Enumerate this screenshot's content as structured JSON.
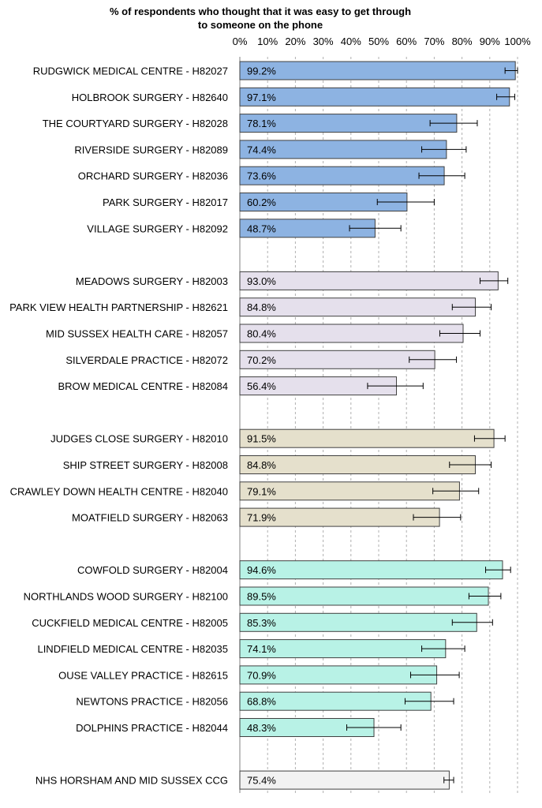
{
  "chart_data": {
    "type": "bar",
    "orientation": "horizontal",
    "title_lines": [
      "% of respondents who thought that it was easy to get through",
      "to someone on the phone"
    ],
    "xlim": [
      0,
      100
    ],
    "xticks": [
      "0%",
      "10%",
      "20%",
      "30%",
      "40%",
      "50%",
      "60%",
      "70%",
      "80%",
      "90%",
      "100%"
    ],
    "grid": "vertical dashed",
    "groups": [
      {
        "color": "#8db3e2",
        "bars": [
          {
            "label": "RUDGWICK MEDICAL CENTRE - H82027",
            "value": 99.2,
            "value_label": "99.2%",
            "ci": [
              95.5,
              100
            ]
          },
          {
            "label": "HOLBROOK SURGERY - H82640",
            "value": 97.1,
            "value_label": "97.1%",
            "ci": [
              92.5,
              99
            ]
          },
          {
            "label": "THE COURTYARD SURGERY - H82028",
            "value": 78.1,
            "value_label": "78.1%",
            "ci": [
              68.5,
              85.5
            ]
          },
          {
            "label": "RIVERSIDE SURGERY - H82089",
            "value": 74.4,
            "value_label": "74.4%",
            "ci": [
              65.5,
              81.5
            ]
          },
          {
            "label": "ORCHARD SURGERY - H82036",
            "value": 73.6,
            "value_label": "73.6%",
            "ci": [
              64.5,
              81
            ]
          },
          {
            "label": "PARK SURGERY - H82017",
            "value": 60.2,
            "value_label": "60.2%",
            "ci": [
              49.5,
              70
            ]
          },
          {
            "label": "VILLAGE SURGERY - H82092",
            "value": 48.7,
            "value_label": "48.7%",
            "ci": [
              39.5,
              58
            ]
          }
        ]
      },
      {
        "color": "#e5e0ec",
        "bars": [
          {
            "label": "MEADOWS SURGERY - H82003",
            "value": 93.0,
            "value_label": "93.0%",
            "ci": [
              86.5,
              96.5
            ]
          },
          {
            "label": "PARK VIEW HEALTH PARTNERSHIP - H82621",
            "value": 84.8,
            "value_label": "84.8%",
            "ci": [
              76.5,
              90.5
            ]
          },
          {
            "label": "MID SUSSEX HEALTH CARE - H82057",
            "value": 80.4,
            "value_label": "80.4%",
            "ci": [
              72,
              86.5
            ]
          },
          {
            "label": "SILVERDALE PRACTICE - H82072",
            "value": 70.2,
            "value_label": "70.2%",
            "ci": [
              61,
              78
            ]
          },
          {
            "label": "BROW MEDICAL CENTRE - H82084",
            "value": 56.4,
            "value_label": "56.4%",
            "ci": [
              46,
              66
            ]
          }
        ]
      },
      {
        "color": "#e5e0cc",
        "bars": [
          {
            "label": "JUDGES CLOSE SURGERY - H82010",
            "value": 91.5,
            "value_label": "91.5%",
            "ci": [
              84.5,
              95.5
            ]
          },
          {
            "label": "SHIP STREET SURGERY - H82008",
            "value": 84.8,
            "value_label": "84.8%",
            "ci": [
              75.5,
              90.5
            ]
          },
          {
            "label": "CRAWLEY DOWN HEALTH CENTRE - H82040",
            "value": 79.1,
            "value_label": "79.1%",
            "ci": [
              69.5,
              86
            ]
          },
          {
            "label": "MOATFIELD SURGERY - H82063",
            "value": 71.9,
            "value_label": "71.9%",
            "ci": [
              62.5,
              79.5
            ]
          }
        ]
      },
      {
        "color": "#b8f2e6",
        "bars": [
          {
            "label": "COWFOLD SURGERY - H82004",
            "value": 94.6,
            "value_label": "94.6%",
            "ci": [
              88.5,
              97.5
            ]
          },
          {
            "label": "NORTHLANDS WOOD SURGERY - H82100",
            "value": 89.5,
            "value_label": "89.5%",
            "ci": [
              82.5,
              94
            ]
          },
          {
            "label": "CUCKFIELD MEDICAL CENTRE - H82005",
            "value": 85.3,
            "value_label": "85.3%",
            "ci": [
              76.5,
              91
            ]
          },
          {
            "label": "LINDFIELD MEDICAL CENTRE - H82035",
            "value": 74.1,
            "value_label": "74.1%",
            "ci": [
              65.5,
              81
            ]
          },
          {
            "label": "OUSE VALLEY PRACTICE - H82615",
            "value": 70.9,
            "value_label": "70.9%",
            "ci": [
              61.5,
              79
            ]
          },
          {
            "label": "NEWTONS PRACTICE - H82056",
            "value": 68.8,
            "value_label": "68.8%",
            "ci": [
              59.5,
              77
            ]
          },
          {
            "label": "DOLPHINS PRACTICE - H82044",
            "value": 48.3,
            "value_label": "48.3%",
            "ci": [
              38.5,
              58
            ]
          }
        ]
      },
      {
        "color": "#f2f2f2",
        "bars": [
          {
            "label": "NHS HORSHAM AND MID SUSSEX CCG",
            "value": 75.4,
            "value_label": "75.4%",
            "ci": [
              73.5,
              77
            ]
          }
        ]
      }
    ]
  }
}
